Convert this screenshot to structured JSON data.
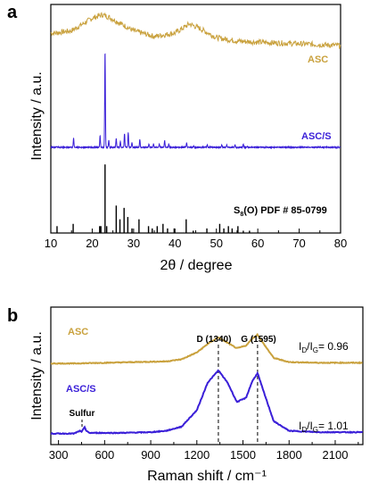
{
  "colors": {
    "asc": "#C9A13D",
    "asc_s": "#3A1FD8",
    "ref": "#000000"
  },
  "chart_data": [
    {
      "type": "line",
      "panel": "a",
      "xlabel": "2θ / degree",
      "ylabel": "Intensity / a.u.",
      "xlim": [
        10,
        80
      ],
      "xticks": [
        "10",
        "20",
        "30",
        "40",
        "50",
        "60",
        "70",
        "80"
      ],
      "yticks_shown": false,
      "series": [
        {
          "name": "ASC",
          "kind": "broad",
          "baseline": 0.8,
          "noise": 0.012,
          "points": [
            [
              11,
              0.875
            ],
            [
              15,
              0.885
            ],
            [
              20,
              0.94
            ],
            [
              22.5,
              0.955
            ],
            [
              24,
              0.945
            ],
            [
              27,
              0.915
            ],
            [
              30,
              0.885
            ],
            [
              35,
              0.86
            ],
            [
              40,
              0.875
            ],
            [
              43.5,
              0.915
            ],
            [
              46,
              0.895
            ],
            [
              50,
              0.855
            ],
            [
              55,
              0.84
            ],
            [
              60,
              0.835
            ],
            [
              70,
              0.828
            ],
            [
              80,
              0.82
            ]
          ]
        },
        {
          "name": "ASC/S",
          "kind": "peaks",
          "baseline": 0.375,
          "peaks": [
            [
              11.5,
              0.005
            ],
            [
              15.5,
              0.04
            ],
            [
              21.9,
              0.05
            ],
            [
              23.1,
              0.42
            ],
            [
              24.0,
              0.03
            ],
            [
              25.8,
              0.04
            ],
            [
              26.8,
              0.025
            ],
            [
              27.8,
              0.06
            ],
            [
              28.7,
              0.065
            ],
            [
              29.6,
              0.02
            ],
            [
              31.5,
              0.035
            ],
            [
              33.7,
              0.015
            ],
            [
              34.8,
              0.015
            ],
            [
              36.2,
              0.015
            ],
            [
              37.5,
              0.03
            ],
            [
              38.5,
              0.015
            ],
            [
              42.8,
              0.02
            ],
            [
              44.5,
              0.005
            ],
            [
              47.8,
              0.01
            ],
            [
              51.3,
              0.01
            ],
            [
              52.5,
              0.01
            ],
            [
              54.5,
              0.01
            ],
            [
              56.5,
              0.015
            ],
            [
              57.5,
              0.005
            ]
          ]
        },
        {
          "name": "S8(O) PDF # 85-0799",
          "kind": "sticks",
          "baseline": 0.0,
          "sticks": [
            [
              11.5,
              0.03
            ],
            [
              15.4,
              0.04
            ],
            [
              21.8,
              0.03
            ],
            [
              22.1,
              0.03
            ],
            [
              23.1,
              0.3
            ],
            [
              23.5,
              0.03
            ],
            [
              25.8,
              0.12
            ],
            [
              26.7,
              0.06
            ],
            [
              27.7,
              0.11
            ],
            [
              28.6,
              0.07
            ],
            [
              29.6,
              0.02
            ],
            [
              31.3,
              0.06
            ],
            [
              33.6,
              0.03
            ],
            [
              34.5,
              0.02
            ],
            [
              35.7,
              0.03
            ],
            [
              37.1,
              0.04
            ],
            [
              38.2,
              0.02
            ],
            [
              39.8,
              0.02
            ],
            [
              42.7,
              0.06
            ],
            [
              44.4,
              0.01
            ],
            [
              47.7,
              0.02
            ],
            [
              50.8,
              0.04
            ],
            [
              51.8,
              0.02
            ],
            [
              52.9,
              0.03
            ],
            [
              53.8,
              0.02
            ],
            [
              55.2,
              0.03
            ],
            [
              56.5,
              0.01
            ],
            [
              58,
              0.01
            ]
          ]
        }
      ],
      "labels": {
        "asc": "ASC",
        "asc_s": "ASC/S",
        "ref_main": "S",
        "ref_sub": "8",
        "ref_rest": "(O) PDF # 85-0799"
      }
    },
    {
      "type": "line",
      "panel": "b",
      "xlabel": "Raman shift / cm⁻¹",
      "ylabel": "Intensity / a.u.",
      "xlim": [
        250,
        2280
      ],
      "xticks": [
        "300",
        "600",
        "900",
        "1200",
        "1500",
        "1800",
        "2100"
      ],
      "xtick_values": [
        300,
        600,
        900,
        1200,
        1500,
        1800,
        2100
      ],
      "yticks_shown": false,
      "series": [
        {
          "name": "ASC",
          "points": [
            [
              250,
              0.59
            ],
            [
              400,
              0.59
            ],
            [
              600,
              0.595
            ],
            [
              800,
              0.6
            ],
            [
              1000,
              0.605
            ],
            [
              1100,
              0.62
            ],
            [
              1200,
              0.67
            ],
            [
              1280,
              0.74
            ],
            [
              1340,
              0.78
            ],
            [
              1400,
              0.74
            ],
            [
              1460,
              0.7
            ],
            [
              1520,
              0.72
            ],
            [
              1560,
              0.77
            ],
            [
              1595,
              0.8
            ],
            [
              1630,
              0.74
            ],
            [
              1700,
              0.63
            ],
            [
              1800,
              0.6
            ],
            [
              2000,
              0.595
            ],
            [
              2280,
              0.595
            ]
          ]
        },
        {
          "name": "ASC/S",
          "points": [
            [
              250,
              0.08
            ],
            [
              400,
              0.08
            ],
            [
              440,
              0.1
            ],
            [
              450,
              0.09
            ],
            [
              470,
              0.13
            ],
            [
              480,
              0.1
            ],
            [
              500,
              0.085
            ],
            [
              700,
              0.085
            ],
            [
              900,
              0.09
            ],
            [
              1000,
              0.1
            ],
            [
              1100,
              0.13
            ],
            [
              1200,
              0.25
            ],
            [
              1270,
              0.45
            ],
            [
              1340,
              0.54
            ],
            [
              1400,
              0.45
            ],
            [
              1460,
              0.31
            ],
            [
              1520,
              0.34
            ],
            [
              1560,
              0.46
            ],
            [
              1595,
              0.52
            ],
            [
              1630,
              0.4
            ],
            [
              1700,
              0.17
            ],
            [
              1800,
              0.1
            ],
            [
              2000,
              0.09
            ],
            [
              2280,
              0.09
            ]
          ]
        }
      ],
      "vlines": [
        1340,
        1595
      ],
      "annotations": {
        "d_band": "D (1340)",
        "g_band": "G (1595)",
        "sulfur": "Sulfur",
        "asc": "ASC",
        "asc_s": "ASC/S",
        "ratio_prefix": "I",
        "ratio_d": "D",
        "ratio_mid": "/I",
        "ratio_g": "G",
        "ratio_asc": "= 0.96",
        "ratio_asc_s": "= 1.01"
      }
    }
  ]
}
